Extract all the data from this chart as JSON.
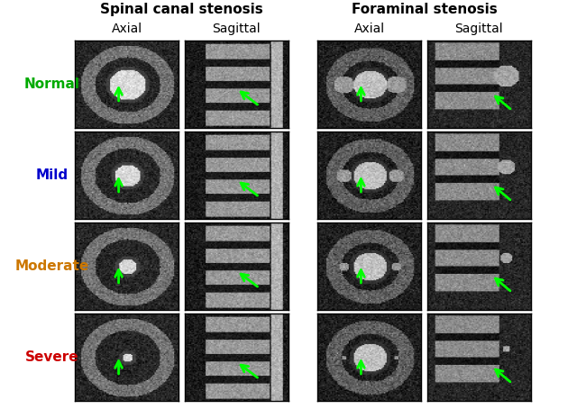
{
  "title_left": "Spinal canal stenosis",
  "title_right": "Foraminal stenosis",
  "col_labels_left": [
    "Axial",
    "Sagittal"
  ],
  "col_labels_right": [
    "Axial",
    "Sagittal"
  ],
  "row_labels": [
    "Normal",
    "Mild",
    "Moderate",
    "Severe"
  ],
  "row_label_colors": [
    "#00aa00",
    "#0000cc",
    "#cc7700",
    "#cc0000"
  ],
  "background_color": "#ffffff",
  "arrow_color": "#00ff00",
  "title_fontsize": 11,
  "col_label_fontsize": 10,
  "row_label_fontsize": 11,
  "fig_width": 6.4,
  "fig_height": 4.54
}
